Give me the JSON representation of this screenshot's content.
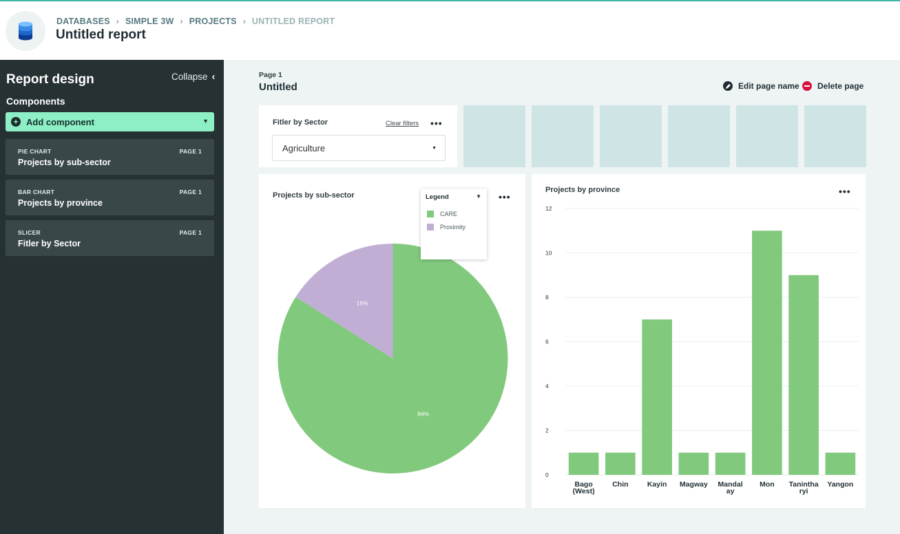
{
  "header": {
    "breadcrumb": [
      "DATABASES",
      "SIMPLE 3W",
      "PROJECTS",
      "UNTITLED REPORT"
    ],
    "title": "Untitled report"
  },
  "sidebar": {
    "title": "Report design",
    "collapse_label": "Collapse",
    "components_label": "Components",
    "add_component_label": "Add component",
    "components": [
      {
        "type": "PIE CHART",
        "page": "PAGE 1",
        "name": "Projects by sub-sector"
      },
      {
        "type": "BAR CHART",
        "page": "PAGE 1",
        "name": "Projects by province"
      },
      {
        "type": "SLICER",
        "page": "PAGE 1",
        "name": "Fitler by Sector"
      }
    ]
  },
  "page": {
    "label": "Page 1",
    "name": "Untitled",
    "edit_label": "Edit page name",
    "delete_label": "Delete page"
  },
  "slicer": {
    "title": "Fitler by Sector",
    "clear_label": "Clear filters",
    "selected": "Agriculture"
  },
  "legend": {
    "title": "Legend",
    "items": [
      {
        "label": "CARE",
        "color": "#81c97c"
      },
      {
        "label": "Proximity",
        "color": "#c0aed5"
      }
    ]
  },
  "colors": {
    "accent_green": "#8eeec6",
    "sidebar_bg": "#263133",
    "bar_green": "#81c97c",
    "pie_purple": "#c0aed5",
    "delete_red": "#d6113f"
  },
  "chart_data": [
    {
      "type": "pie",
      "title": "Projects by sub-sector",
      "series": [
        {
          "name": "CARE",
          "value": 84,
          "label": "84%",
          "color": "#81c97c"
        },
        {
          "name": "Proximity",
          "value": 16,
          "label": "16%",
          "color": "#c0aed5"
        }
      ]
    },
    {
      "type": "bar",
      "title": "Projects by province",
      "categories": [
        [
          "Bago",
          "(West)"
        ],
        [
          "Chin"
        ],
        [
          "Kayin"
        ],
        [
          "Magway"
        ],
        [
          "Mandal",
          "ay"
        ],
        [
          "Mon"
        ],
        [
          "Tanintha",
          "ryi"
        ],
        [
          "Yangon"
        ]
      ],
      "values": [
        1,
        1,
        7,
        1,
        1,
        11,
        9,
        1
      ],
      "ylim": [
        0,
        12
      ],
      "yticks": [
        0,
        2,
        4,
        6,
        8,
        10,
        12
      ],
      "grid": true,
      "color": "#81c97c"
    }
  ]
}
